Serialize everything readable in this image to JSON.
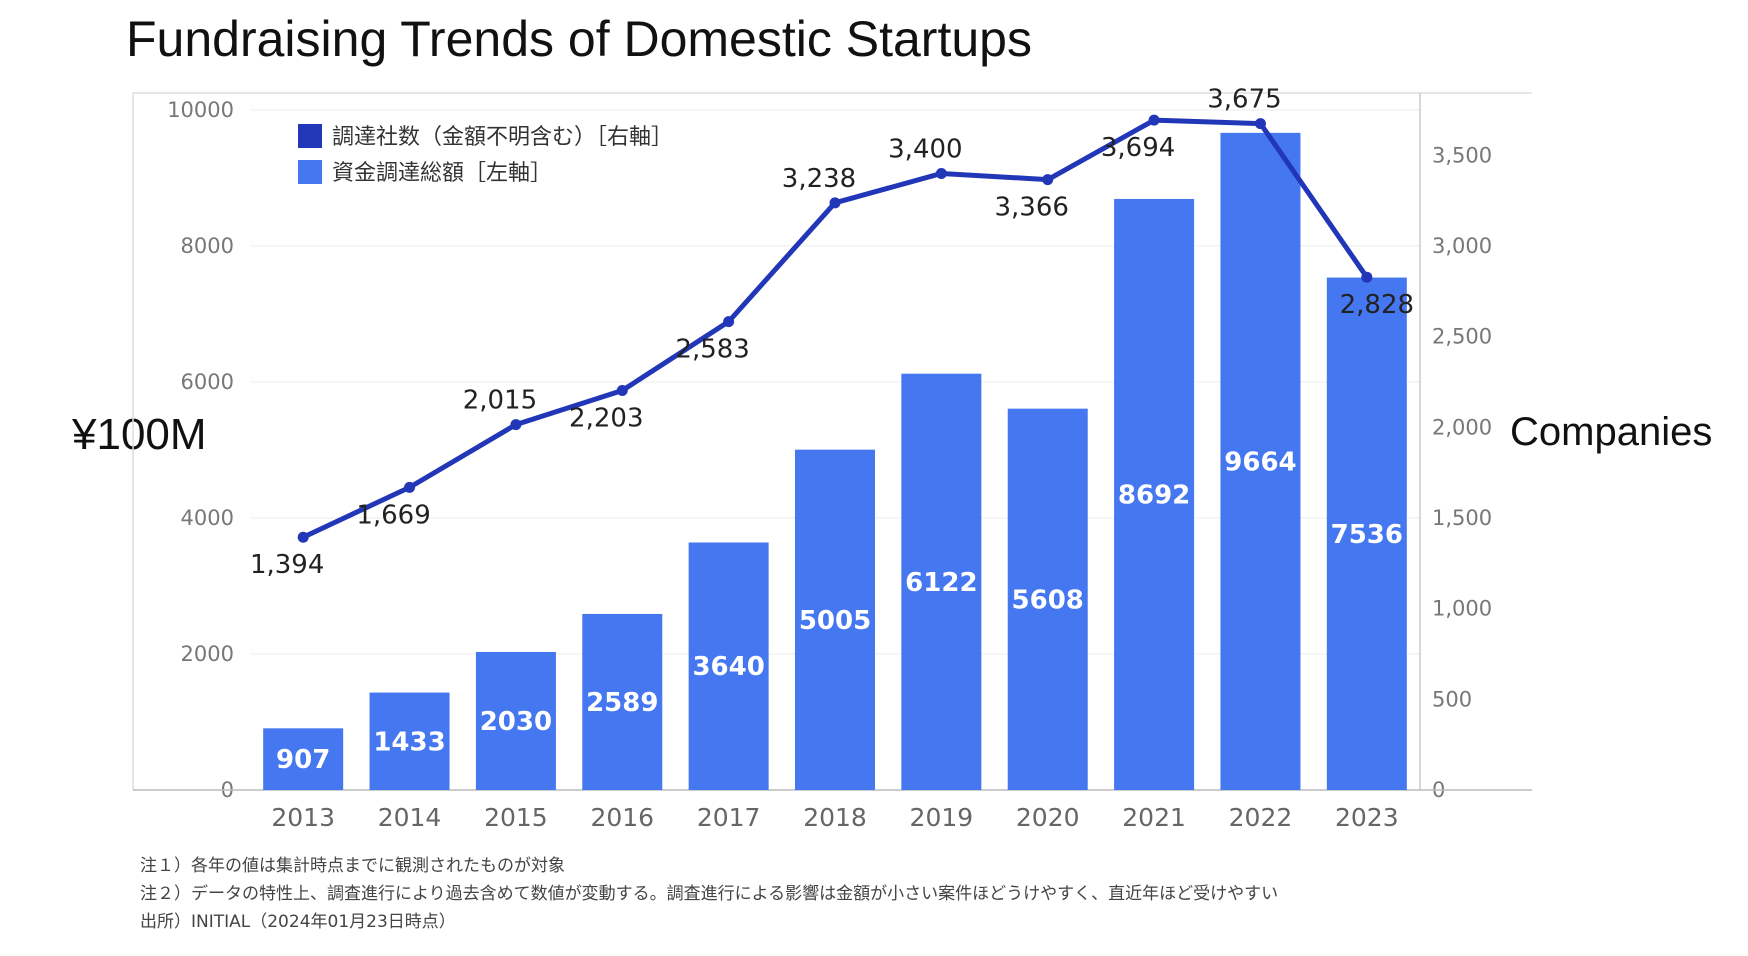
{
  "chart_data": {
    "type": "bar+line",
    "title": "Fundraising Trends of Domestic Startups",
    "y_left_label": "¥100M",
    "y_right_label": "Companies",
    "categories": [
      "2013",
      "2014",
      "2015",
      "2016",
      "2017",
      "2018",
      "2019",
      "2020",
      "2021",
      "2022",
      "2023"
    ],
    "bar_series": {
      "name": "資金調達総額［左軸］",
      "values": [
        907,
        1433,
        2030,
        2589,
        3640,
        5005,
        6122,
        5608,
        8692,
        9664,
        7536
      ],
      "color": "#4577F0"
    },
    "line_series": {
      "name": "調達社数（金額不明含む）［右軸］",
      "values": [
        1394,
        1669,
        2015,
        2203,
        2583,
        3238,
        3400,
        3366,
        3694,
        3675,
        2828
      ],
      "labels": [
        "1,394",
        "1,669",
        "2,015",
        "2,203",
        "2,583",
        "3,238",
        "3,400",
        "3,366",
        "3,694",
        "3,675",
        "2,828"
      ],
      "color": "#2237B8"
    },
    "y_left": {
      "min": 0,
      "max": 10000,
      "ticks": [
        "0",
        "2000",
        "4000",
        "6000",
        "8000",
        "10000"
      ]
    },
    "y_right": {
      "min": 0,
      "max": 3750,
      "ticks": [
        "0",
        "500",
        "1,000",
        "1,500",
        "2,000",
        "2,500",
        "3,000",
        "3,500"
      ]
    },
    "grid": true,
    "legend_position": "top-left"
  },
  "notes": [
    "注１）各年の値は集計時点までに観測されたものが対象",
    "注２）データの特性上、調査進行により過去含めて数値が変動する。調査進行による影響は金額が小さい案件ほどうけやすく、直近年ほど受けやすい",
    "出所）INITIAL（2024年01月23日時点）"
  ]
}
